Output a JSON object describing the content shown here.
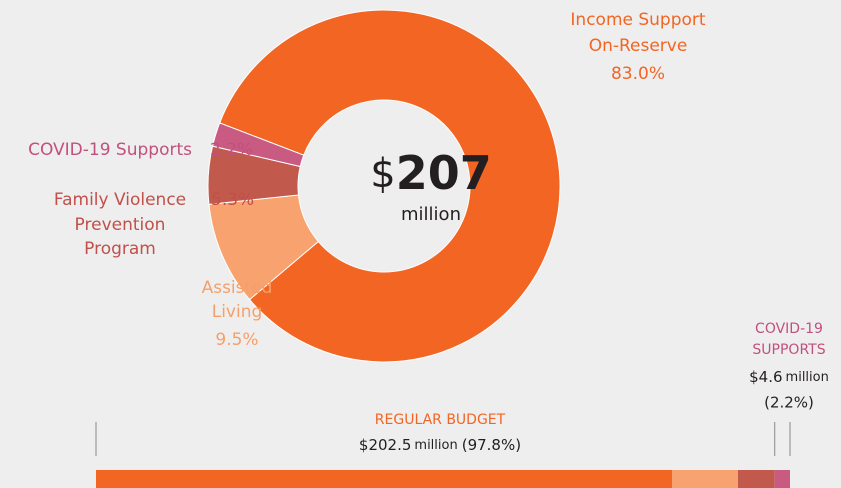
{
  "chart_data": [
    {
      "type": "pie",
      "categories": [
        [
          "Income Support",
          "On-Reserve"
        ],
        [
          "Assisted",
          "Living"
        ],
        [
          "Family Violence",
          "Prevention",
          "Program"
        ],
        [
          "COVID-19 Supports"
        ]
      ],
      "values": [
        83.0,
        9.5,
        5.3,
        2.2
      ],
      "value_labels": [
        "83.0%",
        "9.5%",
        "5.3%",
        "2.2%"
      ],
      "colors": [
        "#f26522",
        "#f7a26f",
        "#c15a4c",
        "#c95a82"
      ],
      "center": {
        "symbol": "$",
        "value": 207,
        "unit": "million"
      }
    },
    {
      "type": "bar",
      "groups": [
        {
          "name": [
            "REGULAR BUDGET"
          ],
          "amount": "$202.5",
          "unit": "million",
          "share": "(97.8%)",
          "values": [
            83.0,
            9.5,
            5.3
          ],
          "colors": [
            "#f26522",
            "#f7a26f",
            "#c15a4c"
          ]
        },
        {
          "name": [
            "COVID-19",
            "SUPPORTS"
          ],
          "amount": "$4.6",
          "unit": "million",
          "share": "(2.2%)",
          "values": [
            2.2
          ],
          "colors": [
            "#c95a82"
          ]
        }
      ]
    }
  ]
}
